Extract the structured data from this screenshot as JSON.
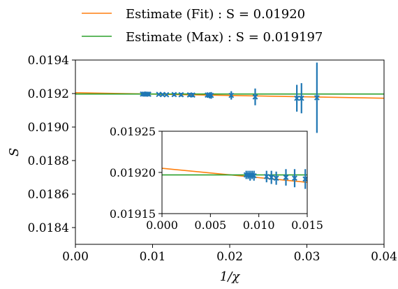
{
  "chart_data": [
    {
      "type": "scatter",
      "role": "main",
      "xlabel": "1/χ",
      "ylabel": "S",
      "xlim": [
        0.0,
        0.04
      ],
      "ylim": [
        0.0183,
        0.0194
      ],
      "x_ticks": [
        0.0,
        0.01,
        0.02,
        0.03,
        0.04
      ],
      "x_tick_labels": [
        "0.00",
        "0.01",
        "0.02",
        "0.03",
        "0.04"
      ],
      "y_ticks": [
        0.0184,
        0.0186,
        0.0188,
        0.019,
        0.0192,
        0.0194
      ],
      "y_tick_labels": [
        "0.0184",
        "0.0186",
        "0.0188",
        "0.0190",
        "0.0192",
        "0.0194"
      ],
      "grid": false,
      "legend_position": "above-plot",
      "series": [
        {
          "name": "Estimate (Fit) : S = 0.01920",
          "kind": "line",
          "color": "#ff7f0e",
          "x": [
            0.0,
            0.04
          ],
          "y": [
            0.019205,
            0.019172
          ]
        },
        {
          "name": "Estimate (Max) : S = 0.019197",
          "kind": "line",
          "color": "#2ca02c",
          "x": [
            0.0,
            0.04
          ],
          "y": [
            0.019197,
            0.019197
          ]
        },
        {
          "kind": "errorbar",
          "color": "#1f77b4",
          "x": [
            0.0087,
            0.0089,
            0.0091,
            0.0093,
            0.0095,
            0.0108,
            0.0113,
            0.0118,
            0.0128,
            0.0137,
            0.0148,
            0.0152,
            0.0171,
            0.0174,
            0.0176,
            0.0202,
            0.0233,
            0.0287,
            0.0293,
            0.0313
          ],
          "y": [
            0.019197,
            0.019197,
            0.019196,
            0.019197,
            0.019196,
            0.019195,
            0.019194,
            0.019193,
            0.019194,
            0.019193,
            0.019192,
            0.019191,
            0.019191,
            0.019189,
            0.019189,
            0.019189,
            0.01918,
            0.019172,
            0.019172,
            0.019175
          ],
          "yerr": [
            5e-06,
            5e-06,
            6e-06,
            5e-06,
            6e-06,
            7e-06,
            8e-06,
            8e-06,
            1e-05,
            1.1e-05,
            1.2e-05,
            1.3e-05,
            1.6e-05,
            1.8e-05,
            2e-05,
            2.5e-05,
            5e-05,
            8e-05,
            9e-05,
            0.00021
          ]
        }
      ]
    },
    {
      "type": "scatter",
      "role": "inset",
      "xlim": [
        0.0,
        0.015
      ],
      "ylim": [
        0.01915,
        0.01925
      ],
      "x_ticks": [
        0.0,
        0.005,
        0.01,
        0.015
      ],
      "x_tick_labels": [
        "0.000",
        "0.005",
        "0.010",
        "0.015"
      ],
      "y_ticks": [
        0.01915,
        0.0192,
        0.01925
      ],
      "y_tick_labels": [
        "0.01915",
        "0.01920",
        "0.01925"
      ],
      "grid": false,
      "series": [
        {
          "kind": "line",
          "color": "#ff7f0e",
          "x": [
            0.0,
            0.015
          ],
          "y": [
            0.019205,
            0.019188
          ]
        },
        {
          "kind": "line",
          "color": "#2ca02c",
          "x": [
            0.0,
            0.015
          ],
          "y": [
            0.019197,
            0.019197
          ]
        },
        {
          "kind": "errorbar",
          "color": "#1f77b4",
          "x": [
            0.0087,
            0.0089,
            0.0091,
            0.0093,
            0.0095,
            0.0108,
            0.0113,
            0.0118,
            0.0128,
            0.0137,
            0.0148
          ],
          "y": [
            0.019197,
            0.019197,
            0.019196,
            0.019197,
            0.019196,
            0.019195,
            0.019194,
            0.019193,
            0.019194,
            0.019193,
            0.019192
          ],
          "yerr": [
            5e-06,
            5e-06,
            6e-06,
            5e-06,
            6e-06,
            7e-06,
            8e-06,
            8e-06,
            1e-05,
            1.1e-05,
            1.2e-05
          ]
        }
      ]
    }
  ]
}
